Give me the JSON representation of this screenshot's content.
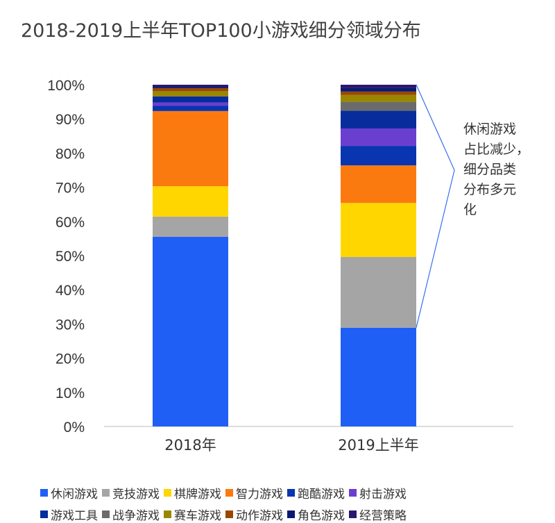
{
  "chart_data": {
    "type": "bar",
    "stacked": true,
    "title": "2018-2019上半年TOP100小游戏细分领域分布",
    "categories": [
      "2018年",
      "2019上半年"
    ],
    "ylim": [
      0,
      100
    ],
    "yticks": [
      "0%",
      "10%",
      "20%",
      "30%",
      "40%",
      "50%",
      "60%",
      "70%",
      "80%",
      "90%",
      "100%"
    ],
    "series": [
      {
        "name": "休闲游戏",
        "color": "#1f5ff5",
        "values": [
          55.5,
          28.9
        ]
      },
      {
        "name": "竞技游戏",
        "color": "#a5a5a5",
        "values": [
          5.9,
          20.7
        ]
      },
      {
        "name": "棋牌游戏",
        "color": "#ffd600",
        "values": [
          8.9,
          15.8
        ]
      },
      {
        "name": "智力游戏",
        "color": "#fb7a10",
        "values": [
          22.0,
          11.0
        ]
      },
      {
        "name": "跑酷游戏",
        "color": "#0a35b0",
        "values": [
          1.5,
          5.7
        ]
      },
      {
        "name": "射击游戏",
        "color": "#6a3fd0",
        "values": [
          1.0,
          5.1
        ]
      },
      {
        "name": "游戏工具",
        "color": "#082c9c",
        "values": [
          1.8,
          5.2
        ]
      },
      {
        "name": "战争游戏",
        "color": "#6b6b6b",
        "values": [
          0.0,
          2.6
        ]
      },
      {
        "name": "赛车游戏",
        "color": "#9a8600",
        "values": [
          1.5,
          2.0
        ]
      },
      {
        "name": "动作游戏",
        "color": "#9a4800",
        "values": [
          0.9,
          1.0
        ]
      },
      {
        "name": "角色游戏",
        "color": "#0a1a70",
        "values": [
          0.5,
          1.0
        ]
      },
      {
        "name": "经营策略",
        "color": "#2a1870",
        "values": [
          0.5,
          1.0
        ]
      }
    ],
    "annotation": "休闲游戏占比减少，细分品类分布多元化",
    "annotation_lines": [
      "休闲游戏",
      "占比减少，",
      "细分品类",
      "分布多元",
      "化"
    ]
  }
}
